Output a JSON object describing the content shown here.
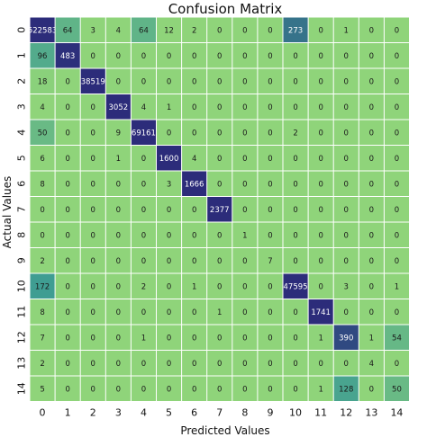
{
  "chart_data": {
    "type": "heatmap",
    "title": "Confusion Matrix",
    "xlabel": "Predicted Values",
    "ylabel": "Actual Values",
    "x_categories": [
      "0",
      "1",
      "2",
      "3",
      "4",
      "5",
      "6",
      "7",
      "8",
      "9",
      "10",
      "11",
      "12",
      "13",
      "14"
    ],
    "y_categories": [
      "0",
      "1",
      "2",
      "3",
      "4",
      "5",
      "6",
      "7",
      "8",
      "9",
      "10",
      "11",
      "12",
      "13",
      "14"
    ],
    "grid": false,
    "colorbar": false,
    "colors": {
      "low": "#8fd47a",
      "mid": "#3b9a93",
      "high": "#2c2c7a",
      "text_light": "#ffffff",
      "text_dark": "#1a1a1a"
    },
    "values": [
      [
        522583,
        64,
        3,
        4,
        64,
        12,
        2,
        0,
        0,
        0,
        273,
        0,
        1,
        0,
        0
      ],
      [
        96,
        483,
        0,
        0,
        0,
        0,
        0,
        0,
        0,
        0,
        0,
        0,
        0,
        0,
        0
      ],
      [
        18,
        0,
        38519,
        0,
        0,
        0,
        0,
        0,
        0,
        0,
        0,
        0,
        0,
        0,
        0
      ],
      [
        4,
        0,
        0,
        3052,
        4,
        1,
        0,
        0,
        0,
        0,
        0,
        0,
        0,
        0,
        0
      ],
      [
        50,
        0,
        0,
        9,
        69161,
        0,
        0,
        0,
        0,
        0,
        2,
        0,
        0,
        0,
        0
      ],
      [
        6,
        0,
        0,
        1,
        0,
        1600,
        4,
        0,
        0,
        0,
        0,
        0,
        0,
        0,
        0
      ],
      [
        8,
        0,
        0,
        0,
        0,
        3,
        1666,
        0,
        0,
        0,
        0,
        0,
        0,
        0,
        0
      ],
      [
        0,
        0,
        0,
        0,
        0,
        0,
        0,
        2377,
        0,
        0,
        0,
        0,
        0,
        0,
        0
      ],
      [
        0,
        0,
        0,
        0,
        0,
        0,
        0,
        0,
        1,
        0,
        0,
        0,
        0,
        0,
        0
      ],
      [
        2,
        0,
        0,
        0,
        0,
        0,
        0,
        0,
        0,
        7,
        0,
        0,
        0,
        0,
        0
      ],
      [
        172,
        0,
        0,
        0,
        2,
        0,
        1,
        0,
        0,
        0,
        47595,
        0,
        3,
        0,
        1
      ],
      [
        8,
        0,
        0,
        0,
        0,
        0,
        0,
        1,
        0,
        0,
        0,
        1741,
        0,
        0,
        0
      ],
      [
        7,
        0,
        0,
        0,
        1,
        0,
        0,
        0,
        0,
        0,
        0,
        1,
        390,
        1,
        54
      ],
      [
        2,
        0,
        0,
        0,
        0,
        0,
        0,
        0,
        0,
        0,
        0,
        0,
        0,
        4,
        0
      ],
      [
        5,
        0,
        0,
        0,
        0,
        0,
        0,
        0,
        0,
        0,
        0,
        1,
        128,
        0,
        50
      ]
    ]
  }
}
